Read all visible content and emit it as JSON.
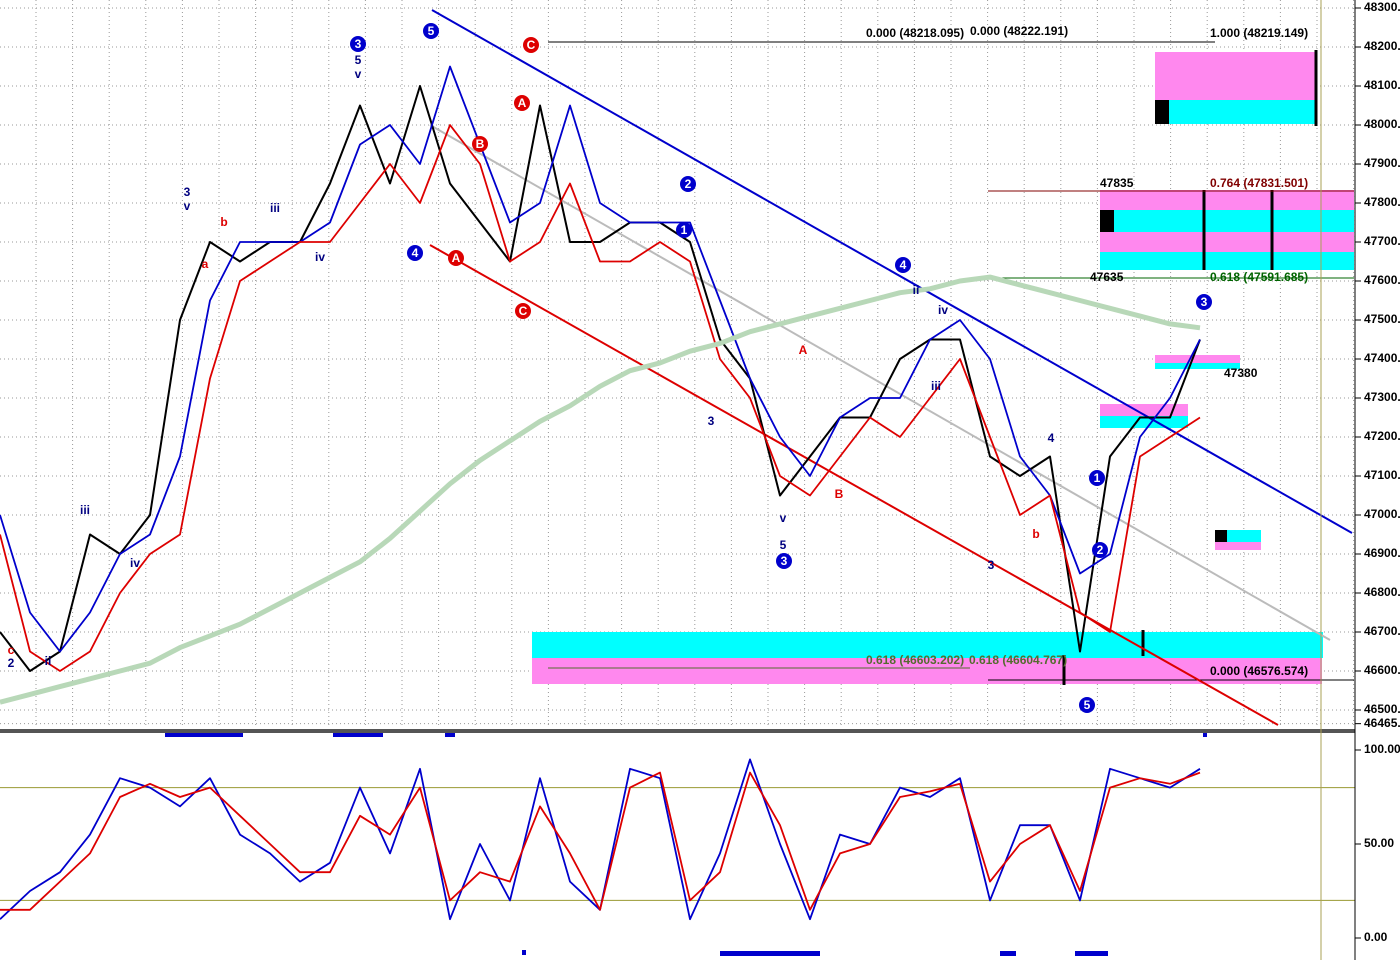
{
  "chart_data": [
    {
      "type": "line",
      "xlim": [
        0,
        44
      ],
      "ylim": [
        46465,
        48300
      ],
      "yticks": [
        {
          "value": 46465,
          "label": "46465."
        },
        {
          "value": 46500,
          "label": "46500."
        },
        {
          "value": 46600,
          "label": "46600."
        },
        {
          "value": 46700,
          "label": "46700."
        },
        {
          "value": 46800,
          "label": "46800."
        },
        {
          "value": 46900,
          "label": "46900."
        },
        {
          "value": 47000,
          "label": "47000."
        },
        {
          "value": 47100,
          "label": "47100."
        },
        {
          "value": 47200,
          "label": "47200."
        },
        {
          "value": 47300,
          "label": "47300."
        },
        {
          "value": 47400,
          "label": "47400."
        },
        {
          "value": 47500,
          "label": "47500."
        },
        {
          "value": 47600,
          "label": "47600."
        },
        {
          "value": 47700,
          "label": "47700."
        },
        {
          "value": 47800,
          "label": "47800."
        },
        {
          "value": 47900,
          "label": "47900."
        },
        {
          "value": 48000,
          "label": "48000."
        },
        {
          "value": 48100,
          "label": "48100."
        },
        {
          "value": 48200,
          "label": "48200."
        },
        {
          "value": 48300,
          "label": "48300."
        }
      ],
      "grid": true,
      "x": [
        0,
        1,
        2,
        3,
        4,
        5,
        6,
        7,
        8,
        9,
        10,
        11,
        12,
        13,
        14,
        15,
        16,
        17,
        18,
        19,
        20,
        21,
        22,
        23,
        24,
        25,
        26,
        27,
        28,
        29,
        30,
        31,
        32,
        33,
        34,
        35,
        36,
        37,
        38,
        39,
        40
      ],
      "series": [
        {
          "name": "price",
          "color": "#000000",
          "values": [
            46700,
            46600,
            46650,
            46950,
            46900,
            47000,
            47500,
            47700,
            47650,
            47700,
            47700,
            47850,
            48050,
            47850,
            48100,
            47850,
            47750,
            47650,
            48050,
            47700,
            47700,
            47750,
            47750,
            47700,
            47450,
            47350,
            47050,
            47150,
            47250,
            47250,
            47400,
            47450,
            47450,
            47150,
            47100,
            47150,
            46650,
            47150,
            47250,
            47250,
            47450
          ]
        },
        {
          "name": "fast-ma",
          "color": "#0000cc",
          "values": [
            47000,
            46750,
            46650,
            46750,
            46900,
            46950,
            47150,
            47550,
            47700,
            47700,
            47700,
            47750,
            47950,
            48000,
            47900,
            48150,
            47950,
            47750,
            47800,
            48050,
            47800,
            47750,
            47750,
            47750,
            47550,
            47350,
            47200,
            47100,
            47250,
            47300,
            47300,
            47450,
            47500,
            47400,
            47150,
            47050,
            46850,
            46900,
            47200,
            47300,
            47450
          ]
        },
        {
          "name": "slow-ma",
          "color": "#dd0000",
          "values": [
            46950,
            46650,
            46600,
            46650,
            46800,
            46900,
            46950,
            47350,
            47600,
            47650,
            47700,
            47700,
            47800,
            47900,
            47800,
            48000,
            47900,
            47650,
            47700,
            47850,
            47650,
            47650,
            47700,
            47650,
            47400,
            47300,
            47100,
            47050,
            47150,
            47250,
            47200,
            47300,
            47400,
            47200,
            47000,
            47050,
            46750,
            46700,
            47150,
            47200,
            47250
          ]
        },
        {
          "name": "long-ma",
          "color": "#b8d8b8",
          "values": [
            46520,
            46540,
            46560,
            46580,
            46600,
            46620,
            46660,
            46690,
            46720,
            46760,
            46800,
            46840,
            46880,
            46940,
            47010,
            47080,
            47140,
            47190,
            47240,
            47280,
            47330,
            47370,
            47390,
            47420,
            47440,
            47470,
            47490,
            47510,
            47530,
            47550,
            47570,
            47580,
            47600,
            47610,
            47590,
            47570,
            47550,
            47530,
            47510,
            47490,
            47480
          ]
        }
      ],
      "annotations": [
        "0.000 (48218.095)",
        "0.000 (48222.191)",
        "1.000 (48219.149)",
        "47835",
        "0.764 (47831.501)",
        "47635",
        "0.618 (47591.685)",
        "47380",
        "0.618 (46603.202)",
        "0.618 (46604.767)",
        "0.000 (46576.574)"
      ],
      "wave_labels": [
        "3",
        "5",
        "C",
        "A",
        "B",
        "4",
        "A",
        "C",
        "2",
        "1",
        "4",
        "3",
        "1",
        "2",
        "5",
        "3",
        "iii",
        "iv",
        "ii",
        "c",
        "2",
        "a",
        "b",
        "iii",
        "iv",
        "v",
        "5",
        "3",
        "3",
        "B",
        "A",
        "b",
        "4",
        "ii",
        "iv",
        "iii",
        "5",
        "v",
        "3",
        "v"
      ]
    },
    {
      "type": "line",
      "xlim": [
        0,
        44
      ],
      "ylim": [
        0,
        110
      ],
      "yticks": [
        {
          "value": 0,
          "label": "0.00"
        },
        {
          "value": 50,
          "label": "50.00"
        },
        {
          "value": 100,
          "label": "100.00"
        }
      ],
      "levels": [
        20,
        80
      ],
      "x": [
        0,
        1,
        2,
        3,
        4,
        5,
        6,
        7,
        8,
        9,
        10,
        11,
        12,
        13,
        14,
        15,
        16,
        17,
        18,
        19,
        20,
        21,
        22,
        23,
        24,
        25,
        26,
        27,
        28,
        29,
        30,
        31,
        32,
        33,
        34,
        35,
        36,
        37,
        38,
        39,
        40
      ],
      "series": [
        {
          "name": "%K",
          "color": "#0000cc",
          "values": [
            10,
            25,
            35,
            55,
            85,
            80,
            70,
            85,
            55,
            45,
            30,
            40,
            80,
            45,
            90,
            10,
            50,
            20,
            85,
            30,
            15,
            90,
            85,
            10,
            45,
            95,
            50,
            10,
            55,
            50,
            80,
            75,
            85,
            20,
            60,
            60,
            20,
            90,
            85,
            80,
            90
          ]
        },
        {
          "name": "%D",
          "color": "#dd0000",
          "values": [
            15,
            15,
            30,
            45,
            75,
            82,
            75,
            80,
            65,
            50,
            35,
            35,
            65,
            55,
            80,
            20,
            35,
            30,
            70,
            45,
            15,
            80,
            88,
            20,
            35,
            88,
            60,
            15,
            45,
            50,
            75,
            78,
            82,
            30,
            50,
            60,
            25,
            80,
            85,
            82,
            88
          ]
        }
      ]
    }
  ]
}
